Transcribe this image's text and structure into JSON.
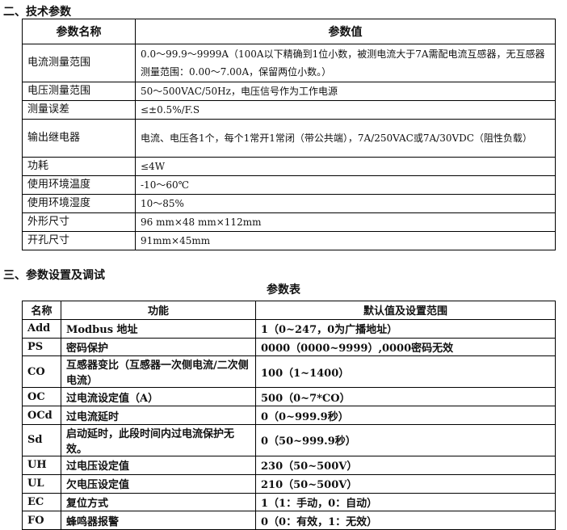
{
  "section2": {
    "title": "二、技术参数",
    "headers": [
      "参数名称",
      "参数值"
    ],
    "rows": [
      [
        "电流测量范围",
        "0.0～99.9～9999A（100A以下精确到1位小数，被测电流大于7A需配电流互感器，无互感器测量范围：0.00～7.00A，保留两位小数。）"
      ],
      [
        "电压测量范围",
        "50～500VAC/50Hz，电压信号作为工作电源"
      ],
      [
        "测量误差",
        "≤±0.5%/F.S"
      ],
      [
        "输出继电器",
        "电流、电压各1个，每个1常开1常闭（带公共端），7A/250VAC或7A/30VDC（阻性负载）"
      ],
      [
        "功耗",
        "≤4W"
      ],
      [
        "使用环境温度",
        "-10～60℃"
      ],
      [
        "使用环境湿度",
        "10～85%"
      ],
      [
        "外形尺寸",
        "96 mm×48 mm×112mm"
      ],
      [
        "开孔尺寸",
        "91mm×45mm"
      ]
    ]
  },
  "section3": {
    "title": "三、参数设置及调试",
    "table_caption": "参数表",
    "headers": [
      "名称",
      "功能",
      "默认值及设置范围"
    ],
    "rows": [
      [
        "Add",
        "Modbus 地址",
        "1（0~247，0为广播地址）"
      ],
      [
        "PS",
        "密码保护",
        "0000（0000~9999）,0000密码无效"
      ],
      [
        "CO",
        "互感器变比（互感器一次侧电流/二次侧电流）",
        "100（1~1400）"
      ],
      [
        "OC",
        "过电流设定值（A）",
        "500（0~7*CO）"
      ],
      [
        "OCd",
        "过电流延时",
        "0（0~999.9秒）"
      ],
      [
        "Sd",
        "启动延时，此段时间内过电流保护无效。",
        "0（50~999.9秒）"
      ],
      [
        "UH",
        "过电压设定值",
        "230（50~500V）"
      ],
      [
        "UL",
        "欠电压设定值",
        "210（50~500V）"
      ],
      [
        "EC",
        "复位方式",
        "1（1：手动，0：自动）"
      ],
      [
        "FO",
        "蜂鸣器报警",
        "0（0：有效，1：无效）"
      ]
    ]
  }
}
